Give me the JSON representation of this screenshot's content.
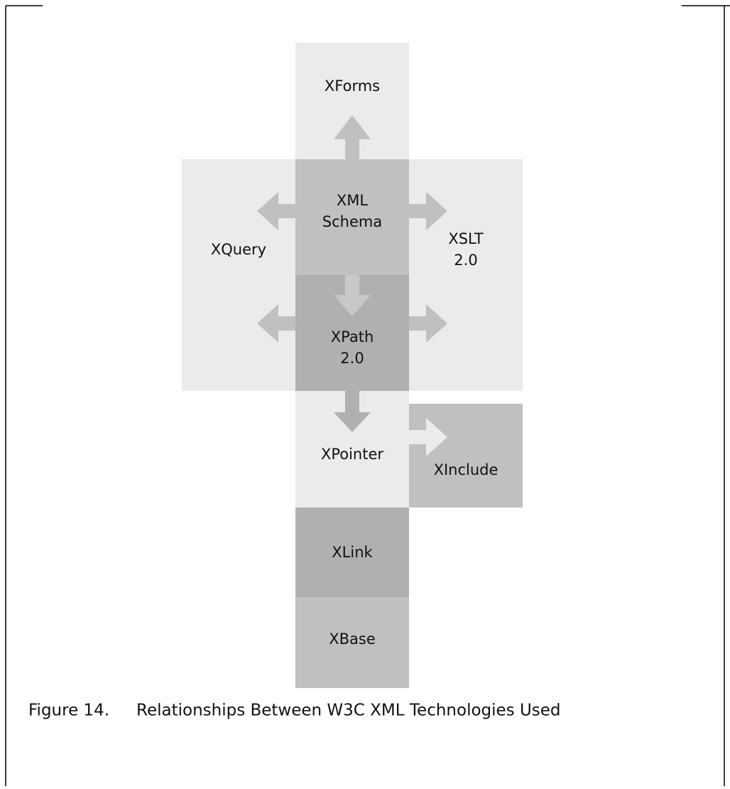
{
  "nodes": [
    {
      "id": "xforms",
      "lines": [
        "XForms"
      ]
    },
    {
      "id": "xquery",
      "lines": [
        "XQuery"
      ]
    },
    {
      "id": "xslt",
      "lines": [
        "XSLT",
        "2.0"
      ]
    },
    {
      "id": "schema",
      "lines": [
        "XML",
        "Schema"
      ]
    },
    {
      "id": "xpath",
      "lines": [
        "XPath",
        "2.0"
      ]
    },
    {
      "id": "xpointer",
      "lines": [
        "XPointer"
      ]
    },
    {
      "id": "xinclude",
      "lines": [
        "XInclude"
      ]
    },
    {
      "id": "xlink",
      "lines": [
        "XLink"
      ]
    },
    {
      "id": "xbase",
      "lines": [
        "XBase"
      ]
    }
  ],
  "caption": {
    "number": "Figure 14.",
    "text": "Relationships Between W3C XML Technologies Used"
  }
}
